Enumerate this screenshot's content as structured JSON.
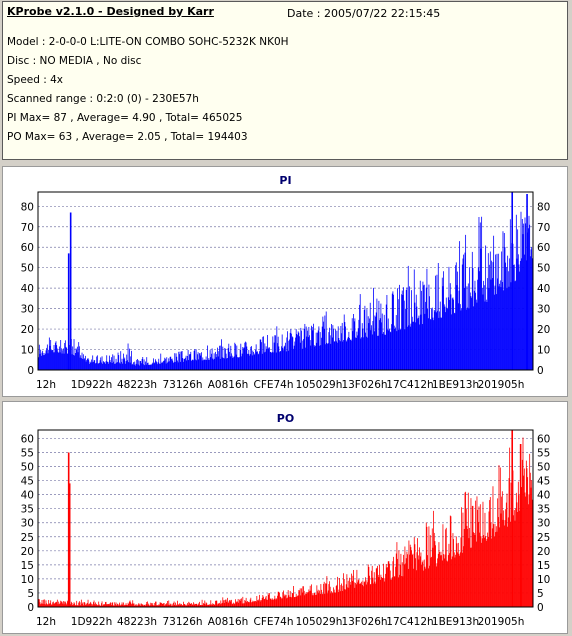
{
  "header": {
    "title": "KProbe v2.1.0 - Designed by Karr",
    "date": "Date : 2005/07/22 22:15:45",
    "lines": [
      "Model : 2-0-0-0 L:LITE-ON COMBO SOHC-5232K NK0H",
      "Disc : NO MEDIA , No disc",
      "Speed : 4x",
      "Scanned range : 0:2:0 (0) - 230E57h",
      "PI Max= 87 , Average= 4.90 , Total= 465025",
      "PO Max= 63 , Average= 2.05 , Total= 194403"
    ]
  },
  "chart_data": [
    {
      "type": "bar",
      "title": "PI",
      "color": "#0000ff",
      "ylim": [
        0,
        87
      ],
      "yticks": [
        0,
        10,
        20,
        30,
        40,
        50,
        60,
        70,
        80
      ],
      "grid": true,
      "xtick_labels": [
        "12h",
        "1D922h",
        "48223h",
        "73126h",
        "A0816h",
        "CFE74h",
        "105029h",
        "13F026h",
        "17C412h",
        "1BE913h",
        "201905h"
      ],
      "envelope": [
        {
          "x": 0.0,
          "base": 6,
          "peak": 13
        },
        {
          "x": 0.02,
          "base": 8,
          "peak": 16
        },
        {
          "x": 0.05,
          "base": 8,
          "peak": 15
        },
        {
          "x": 0.075,
          "base": 7,
          "peak": 14
        },
        {
          "x": 0.1,
          "base": 3,
          "peak": 6
        },
        {
          "x": 0.18,
          "base": 3,
          "peak": 11
        },
        {
          "x": 0.2,
          "base": 2,
          "peak": 5
        },
        {
          "x": 0.3,
          "base": 4,
          "peak": 10
        },
        {
          "x": 0.4,
          "base": 6,
          "peak": 14
        },
        {
          "x": 0.5,
          "base": 9,
          "peak": 19
        },
        {
          "x": 0.6,
          "base": 13,
          "peak": 26
        },
        {
          "x": 0.7,
          "base": 17,
          "peak": 37
        },
        {
          "x": 0.8,
          "base": 24,
          "peak": 48
        },
        {
          "x": 0.9,
          "base": 32,
          "peak": 64
        },
        {
          "x": 0.96,
          "base": 42,
          "peak": 76
        },
        {
          "x": 1.0,
          "base": 55,
          "peak": 82
        }
      ],
      "spikes": [
        {
          "x": 0.066,
          "y": 77
        },
        {
          "x": 0.062,
          "y": 57
        },
        {
          "x": 0.958,
          "y": 87
        },
        {
          "x": 0.988,
          "y": 86
        }
      ]
    },
    {
      "type": "bar",
      "title": "PO",
      "color": "#ff0000",
      "ylim": [
        0,
        63
      ],
      "yticks": [
        0,
        5,
        10,
        15,
        20,
        25,
        30,
        35,
        40,
        45,
        50,
        55,
        60
      ],
      "grid": true,
      "xtick_labels": [
        "12h",
        "1D922h",
        "48223h",
        "73126h",
        "A0816h",
        "CFE74h",
        "105029h",
        "13F026h",
        "17C412h",
        "1BE913h",
        "201905h"
      ],
      "envelope": [
        {
          "x": 0.0,
          "base": 1,
          "peak": 3
        },
        {
          "x": 0.1,
          "base": 0.5,
          "peak": 2
        },
        {
          "x": 0.3,
          "base": 0.5,
          "peak": 2
        },
        {
          "x": 0.4,
          "base": 1,
          "peak": 3
        },
        {
          "x": 0.5,
          "base": 3,
          "peak": 6
        },
        {
          "x": 0.6,
          "base": 5,
          "peak": 10
        },
        {
          "x": 0.7,
          "base": 9,
          "peak": 18
        },
        {
          "x": 0.8,
          "base": 14,
          "peak": 30
        },
        {
          "x": 0.9,
          "base": 22,
          "peak": 42
        },
        {
          "x": 0.96,
          "base": 30,
          "peak": 52
        },
        {
          "x": 1.0,
          "base": 38,
          "peak": 56
        }
      ],
      "spikes": [
        {
          "x": 0.062,
          "y": 55
        },
        {
          "x": 0.064,
          "y": 44
        },
        {
          "x": 0.958,
          "y": 63
        },
        {
          "x": 0.975,
          "y": 58
        }
      ]
    }
  ]
}
